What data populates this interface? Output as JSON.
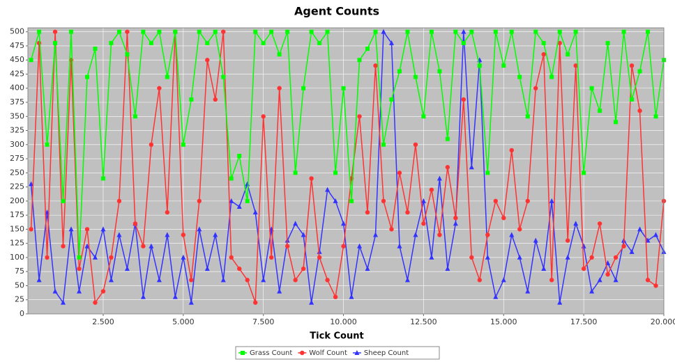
{
  "chart_data": {
    "type": "line",
    "title": "Agent Counts",
    "x_label": "Tick Count",
    "x": [
      250,
      500,
      750,
      1000,
      1250,
      1500,
      1750,
      2000,
      2250,
      2500,
      2750,
      3000,
      3250,
      3500,
      3750,
      4000,
      4250,
      4500,
      4750,
      5000,
      5250,
      5500,
      5750,
      6000,
      6250,
      6500,
      6750,
      7000,
      7250,
      7500,
      7750,
      8000,
      8250,
      8500,
      8750,
      9000,
      9250,
      9500,
      9750,
      10000,
      10250,
      10500,
      10750,
      11000,
      11250,
      11500,
      11750,
      12000,
      12250,
      12500,
      12750,
      13000,
      13250,
      13500,
      13750,
      14000,
      14250,
      14500,
      14750,
      15000,
      15250,
      15500,
      15750,
      16000,
      16250,
      16500,
      16750,
      17000,
      17250,
      17500,
      17750,
      18000,
      18250,
      18500,
      18750,
      19000,
      19250,
      19500,
      19750,
      20000
    ],
    "series": [
      {
        "name": "Grass Count",
        "color": "#00ff00",
        "marker": "square",
        "values": [
          450,
          500,
          300,
          480,
          200,
          500,
          100,
          420,
          470,
          240,
          480,
          500,
          460,
          350,
          500,
          480,
          500,
          420,
          500,
          300,
          380,
          500,
          480,
          500,
          420,
          240,
          280,
          200,
          500,
          480,
          500,
          460,
          500,
          250,
          400,
          500,
          480,
          500,
          250,
          400,
          200,
          450,
          470,
          500,
          300,
          380,
          430,
          500,
          420,
          350,
          500,
          430,
          310,
          500,
          480,
          500,
          440,
          250,
          500,
          440,
          500,
          420,
          350,
          500,
          480,
          420,
          500,
          460,
          500,
          250,
          400,
          360,
          480,
          340,
          500,
          380,
          430,
          500,
          350,
          450
        ]
      },
      {
        "name": "Wolf Count",
        "color": "#ff3333",
        "marker": "circle",
        "values": [
          150,
          480,
          100,
          500,
          120,
          450,
          80,
          150,
          20,
          40,
          100,
          200,
          500,
          160,
          120,
          300,
          400,
          180,
          500,
          140,
          60,
          200,
          450,
          380,
          500,
          100,
          80,
          60,
          20,
          350,
          100,
          400,
          120,
          60,
          80,
          240,
          100,
          60,
          30,
          120,
          240,
          350,
          180,
          440,
          200,
          150,
          250,
          180,
          300,
          160,
          220,
          140,
          260,
          170,
          380,
          100,
          60,
          140,
          200,
          170,
          290,
          150,
          200,
          400,
          460,
          60,
          480,
          130,
          440,
          80,
          100,
          160,
          70,
          100,
          120,
          440,
          360,
          60,
          50,
          200
        ]
      },
      {
        "name": "Sheep Count",
        "color": "#3333ff",
        "marker": "triangle",
        "values": [
          230,
          60,
          180,
          40,
          20,
          150,
          40,
          120,
          100,
          150,
          60,
          140,
          80,
          160,
          30,
          120,
          60,
          140,
          30,
          100,
          20,
          150,
          80,
          140,
          60,
          200,
          190,
          230,
          180,
          60,
          150,
          40,
          130,
          160,
          140,
          20,
          110,
          220,
          200,
          160,
          30,
          120,
          80,
          140,
          500,
          480,
          120,
          60,
          140,
          200,
          100,
          240,
          80,
          160,
          500,
          260,
          450,
          100,
          30,
          60,
          140,
          100,
          40,
          130,
          80,
          200,
          20,
          100,
          160,
          120,
          40,
          60,
          90,
          60,
          130,
          110,
          150,
          130,
          140,
          110
        ]
      }
    ],
    "xlim": [
      150,
      20000
    ],
    "ylim": [
      0,
      507
    ],
    "xticks": [
      {
        "value": 2500,
        "label": "2.500"
      },
      {
        "value": 5000,
        "label": "5.000"
      },
      {
        "value": 7500,
        "label": "7.500"
      },
      {
        "value": 10000,
        "label": "10.000"
      },
      {
        "value": 12500,
        "label": "12.500"
      },
      {
        "value": 15000,
        "label": "15.000"
      },
      {
        "value": 17500,
        "label": "17.500"
      },
      {
        "value": 20000,
        "label": "20.000"
      }
    ],
    "yticks": [
      0,
      25,
      50,
      75,
      100,
      125,
      150,
      175,
      200,
      225,
      250,
      275,
      300,
      325,
      350,
      375,
      400,
      425,
      450,
      475,
      500
    ],
    "grid": true
  }
}
